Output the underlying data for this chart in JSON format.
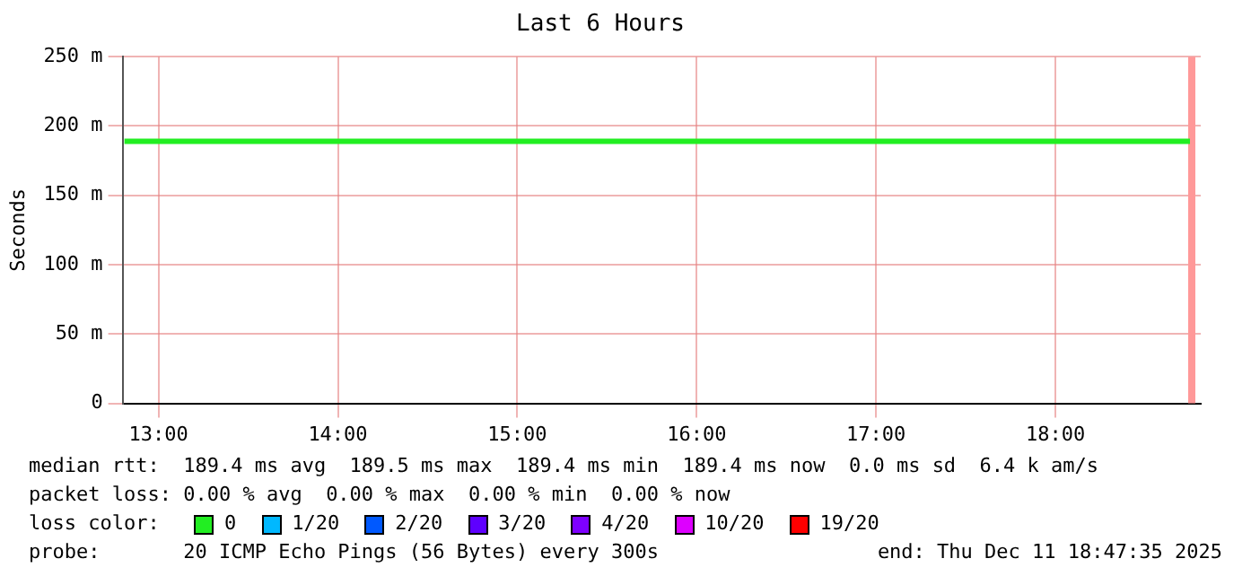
{
  "chart_data": {
    "type": "line",
    "title": "Last 6 Hours",
    "ylabel": "Seconds",
    "legend_title": "loss color:",
    "legend": "bottom",
    "grid": true,
    "marker": "none",
    "line_style": "solid",
    "x": [
      12.81,
      18.75
    ],
    "xlim": [
      12.8,
      18.81
    ],
    "xticks": [
      {
        "value": 13,
        "label": "13:00"
      },
      {
        "value": 14,
        "label": "14:00"
      },
      {
        "value": 15,
        "label": "15:00"
      },
      {
        "value": 16,
        "label": "16:00"
      },
      {
        "value": 17,
        "label": "17:00"
      },
      {
        "value": 18,
        "label": "18:00"
      }
    ],
    "ylim": [
      0,
      250
    ],
    "yticks": [
      0,
      {
        "value": 50,
        "label": "50 m"
      },
      {
        "value": 100,
        "label": "100 m"
      },
      {
        "value": 150,
        "label": "150 m"
      },
      {
        "value": 200,
        "label": "200 m"
      },
      {
        "value": 250,
        "label": "250 m"
      }
    ],
    "series": [
      {
        "name": "0",
        "color": "#22ee22",
        "values": [
          189,
          189
        ]
      },
      {
        "name": "1/20",
        "color": "#00b8ff",
        "values": [
          null,
          null
        ]
      },
      {
        "name": "2/20",
        "color": "#0059ff",
        "values": [
          null,
          null
        ]
      },
      {
        "name": "3/20",
        "color": "#5e00ff",
        "values": [
          null,
          null
        ]
      },
      {
        "name": "4/20",
        "color": "#7e00ff",
        "values": [
          null,
          null
        ]
      },
      {
        "name": "10/20",
        "color": "#dd00ff",
        "values": [
          null,
          null
        ]
      },
      {
        "name": "19/20",
        "color": "#ff0000",
        "values": [
          null,
          null
        ]
      }
    ],
    "bands": [
      {
        "axis": "x",
        "from": 18.74,
        "to": 18.78,
        "color": "#ff9999"
      }
    ],
    "annotations": [
      "median rtt:  189.4 ms avg  189.5 ms max  189.4 ms min  189.4 ms now  0.0 ms sd  6.4 k am/s",
      "packet loss: 0.00 % avg  0.00 % max  0.00 % min  0.00 % now",
      "probe:       20 ICMP Echo Pings (56 Bytes) every 300s",
      "end: Thu Dec 11 18:47:35 2025"
    ]
  }
}
